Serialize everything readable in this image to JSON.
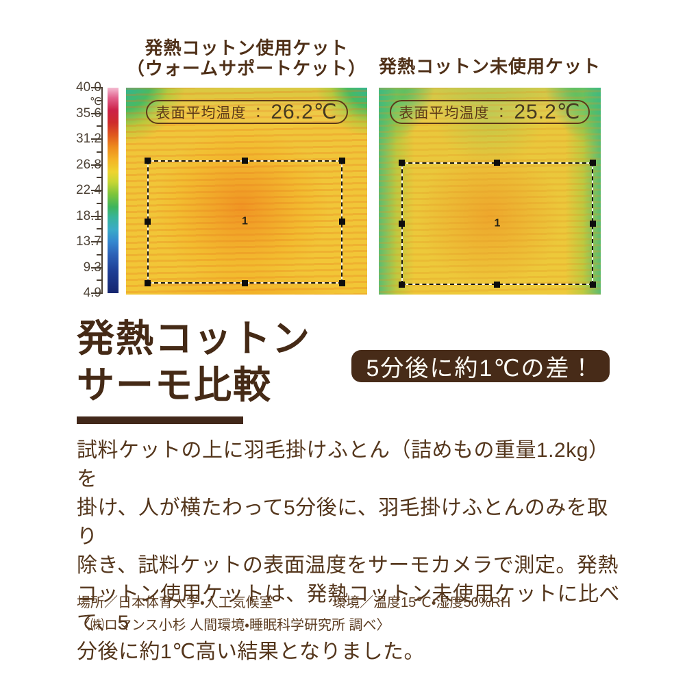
{
  "colors": {
    "background": "#ffffff",
    "heading_brown": "#4f3018",
    "title_brown": "#452a16",
    "body_brown": "#54361c",
    "badge_background": "#472b18",
    "badge_text": "#fdfcf6",
    "pill_outline": "#5c3918",
    "colorbar_top": "#f4bcd2",
    "colorbar_bottom": "#15256e"
  },
  "scale": {
    "unit": "℃",
    "labels": [
      "40.0",
      "35.6",
      "31.2",
      "26.8",
      "22.4",
      "18.1",
      "13.7",
      "9.3",
      "4.9"
    ]
  },
  "panels": [
    {
      "title_line1": "発熱コットン使用ケット",
      "title_line2": "（ウォームサポートケット）",
      "avg_label": "表面平均温度 ：",
      "avg_value": "26.2℃",
      "roi_label": "1"
    },
    {
      "title_line1": "発熱コットン未使用ケット",
      "title_line2": "",
      "avg_label": "表面平均温度 ：",
      "avg_value": "25.2℃",
      "roi_label": "1"
    }
  ],
  "title": {
    "line1": "発熱コットン",
    "line2": "サーモ比較"
  },
  "badge": {
    "text": "5分後に約1℃の差！"
  },
  "body": {
    "text": "試料ケットの上に羽毛掛けふとん（詰めもの重量1.2kg）を\n掛け、人が横たわって5分後に、羽毛掛けふとんのみを取り\n除き、試料ケットの表面温度をサーモカメラで測定。発熱\nコットン使用ケットは、発熱コットン未使用ケットに比べて、5\n分後に約1℃高い結果となりました。"
  },
  "footer": {
    "line1_left": "場所／日本体育大学・人工気候室",
    "line1_right": "環境／温度15℃・湿度50%RH",
    "line2": "〈㈱ロマンス小杉 人間環境・睡眠科学研究所 調べ〉"
  },
  "chart_data": {
    "type": "heatmap",
    "title": "発熱コットン サーモ比較",
    "series": [
      {
        "name": "発熱コットン使用ケット（ウォームサポートケット）",
        "surface_avg_temp_c": 26.2,
        "roi_label": "1"
      },
      {
        "name": "発熱コットン未使用ケット",
        "surface_avg_temp_c": 25.2,
        "roi_label": "1"
      }
    ],
    "difference_annotation": "5分後に約1℃の差！",
    "colorbar": {
      "unit": "℃",
      "ticks": [
        40.0,
        35.6,
        31.2,
        26.8,
        22.4,
        18.1,
        13.7,
        9.3,
        4.9
      ],
      "range": [
        4.9,
        40.0
      ],
      "orientation": "vertical",
      "position": "left"
    },
    "conditions": {
      "place": "日本体育大学・人工気候室",
      "environment": "温度15℃・湿度50%RH",
      "source": "〈㈱ロマンス小杉 人間環境・睡眠科学研究所 調べ〉"
    }
  }
}
